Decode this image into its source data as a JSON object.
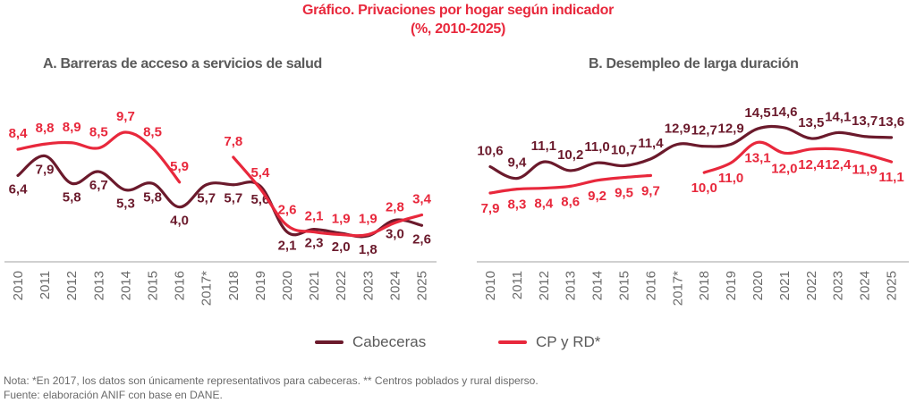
{
  "title": "Gráfico. Privaciones por hogar según indicador",
  "subtitle": "(%, 2010-2025)",
  "colors": {
    "title": "#e8283c",
    "cabeceras": "#6b1a2c",
    "cpyrd": "#e8283c",
    "axis": "#d0d0d0",
    "tick": "#6a6a6a"
  },
  "legend": [
    {
      "label": "Cabeceras",
      "color": "#6b1a2c"
    },
    {
      "label": "CP y RD*",
      "color": "#e8283c"
    }
  ],
  "notes": {
    "nota": "Nota: *En 2017, los datos son únicamente representativos para cabeceras. ** Centros poblados y rural disperso.",
    "fuente": "Fuente: elaboración ANIF con base en DANE."
  },
  "chart_data": [
    {
      "type": "line",
      "title": "A. Barreras de acceso a servicios de salud",
      "xlabel": "",
      "ylabel": "",
      "categories": [
        "2010",
        "2011",
        "2012",
        "2013",
        "2014",
        "2015",
        "2016",
        "2017*",
        "2018",
        "2019",
        "2020",
        "2021",
        "2022",
        "2023",
        "2024",
        "2025"
      ],
      "grid": false,
      "legend_position": "bottom",
      "series": [
        {
          "name": "Cabeceras",
          "values": [
            6.4,
            7.9,
            5.8,
            6.7,
            5.3,
            5.8,
            4.0,
            5.7,
            5.7,
            5.6,
            2.1,
            2.3,
            2.0,
            1.8,
            3.0,
            2.6
          ],
          "labels": [
            "6,4",
            "7,9",
            "5,8",
            "6,7",
            "5,3",
            "5,8",
            "4,0",
            "5,7",
            "5,7",
            "5,6",
            "2,1",
            "2,3",
            "2,0",
            "1,8",
            "3,0",
            "2,6"
          ]
        },
        {
          "name": "CP y RD*",
          "values": [
            8.4,
            8.8,
            8.9,
            8.5,
            9.7,
            8.5,
            5.9,
            null,
            7.8,
            5.4,
            2.6,
            2.1,
            1.9,
            1.9,
            2.8,
            3.4
          ],
          "labels": [
            "8,4",
            "8,8",
            "8,9",
            "8,5",
            "9,7",
            "8,5",
            "5,9",
            null,
            "7,8",
            "5,4",
            "2,6",
            "2,1",
            "1,9",
            "1,9",
            "2,8",
            "3,4"
          ]
        }
      ]
    },
    {
      "type": "line",
      "title": "B. Desempleo de larga duración",
      "xlabel": "",
      "ylabel": "",
      "categories": [
        "2010",
        "2011",
        "2012",
        "2013",
        "2014",
        "2015",
        "2016",
        "2017*",
        "2018",
        "2019",
        "2020",
        "2021",
        "2022",
        "2023",
        "2024",
        "2025"
      ],
      "grid": false,
      "legend_position": "bottom",
      "series": [
        {
          "name": "Cabeceras",
          "values": [
            10.6,
            9.4,
            11.1,
            10.2,
            11.0,
            10.7,
            11.4,
            12.9,
            12.7,
            12.9,
            14.5,
            14.6,
            13.5,
            14.1,
            13.7,
            13.6
          ],
          "labels": [
            "10,6",
            "9,4",
            "11,1",
            "10,2",
            "11,0",
            "10,7",
            "11,4",
            "12,9",
            "12,7",
            "12,9",
            "14,5",
            "14,6",
            "13,5",
            "14,1",
            "13,7",
            "13,6"
          ]
        },
        {
          "name": "CP y RD*",
          "values": [
            7.9,
            8.3,
            8.4,
            8.6,
            9.2,
            9.5,
            9.7,
            null,
            10.0,
            11.0,
            13.1,
            12.0,
            12.4,
            12.4,
            11.9,
            11.1
          ],
          "labels": [
            "7,9",
            "8,3",
            "8,4",
            "8,6",
            "9,2",
            "9,5",
            "9,7",
            null,
            "10,0",
            "11,0",
            "13,1",
            "12,0",
            "12,4",
            "12,4",
            "11,9",
            "11,1"
          ]
        }
      ]
    }
  ]
}
